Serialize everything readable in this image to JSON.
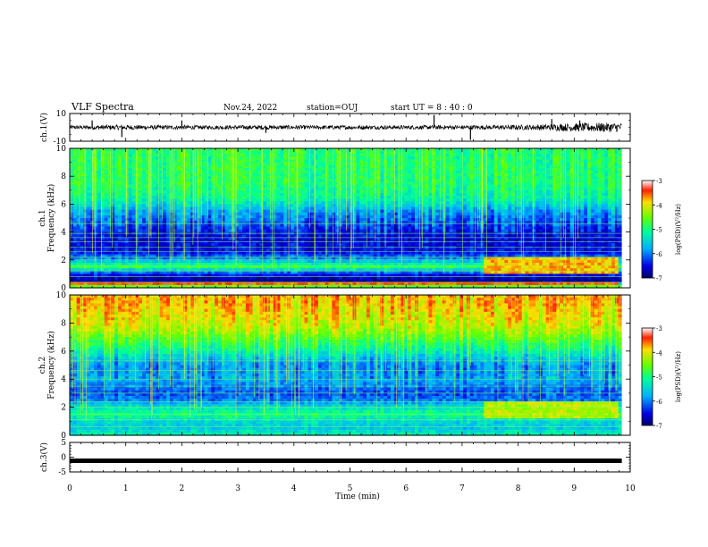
{
  "header": {
    "title": "VLF Spectra",
    "date": "Nov.24, 2022",
    "station": "station=OUJ",
    "start": "start  UT =  8 : 40 : 0"
  },
  "chart_data": [
    {
      "type": "line",
      "panel": "ch1-waveform",
      "ylabel": "ch.1(V)",
      "ylim": [
        -10,
        10
      ],
      "yticks": [
        "10",
        "-10"
      ],
      "xlim": [
        0,
        10
      ],
      "x": [
        0,
        0.5,
        1.0,
        1.5,
        2.0,
        2.5,
        3.0,
        3.5,
        4.0,
        4.5,
        5.0,
        5.5,
        6.0,
        6.5,
        7.0,
        7.5,
        8.0,
        8.5,
        9.0,
        9.5,
        9.85
      ],
      "envelope": [
        1.4,
        1.6,
        1.8,
        1.5,
        1.5,
        1.4,
        1.5,
        1.6,
        1.5,
        1.4,
        1.5,
        1.4,
        1.4,
        1.5,
        1.5,
        1.6,
        1.8,
        2.2,
        3.0,
        3.4,
        3.4
      ],
      "spikes": [
        {
          "x": 0.4,
          "y": 5
        },
        {
          "x": 0.93,
          "y": -7
        },
        {
          "x": 2.0,
          "y": 5
        },
        {
          "x": 3.5,
          "y": -4
        },
        {
          "x": 6.5,
          "y": 9
        },
        {
          "x": 7.15,
          "y": -9
        },
        {
          "x": 8.6,
          "y": 6
        },
        {
          "x": 9.1,
          "y": 5
        }
      ]
    },
    {
      "type": "heatmap",
      "panel": "ch1-spectrogram",
      "ylabel": "ch.1",
      "ylabel2": "Frequency (kHz)",
      "ylim": [
        0,
        10
      ],
      "yticks": [
        "0",
        "2",
        "4",
        "6",
        "8",
        "10"
      ],
      "xlim": [
        0,
        10
      ],
      "colorbar": {
        "label": "log(PSD)(V²/Hz)",
        "ticks": [
          "-3",
          "-4",
          "-5",
          "-6",
          "-7"
        ],
        "range": [
          -7,
          -3
        ]
      },
      "freq_khz": [
        0,
        0.5,
        1,
        1.5,
        2,
        2.5,
        3,
        3.5,
        4,
        4.5,
        5,
        5.5,
        6,
        6.5,
        7,
        7.5,
        8,
        8.5,
        9,
        9.5,
        10
      ],
      "profile_log_psd": [
        -4.0,
        -6.8,
        -6.4,
        -4.8,
        -5.8,
        -6.4,
        -6.5,
        -6.5,
        -6.4,
        -6.2,
        -6.0,
        -5.8,
        -5.4,
        -5.1,
        -5.0,
        -4.9,
        -4.9,
        -4.9,
        -4.9,
        -4.9,
        -4.9
      ],
      "hotspots": [
        {
          "t_start": 7.4,
          "t_end": 9.8,
          "f_start": 1.0,
          "f_end": 2.2,
          "log_psd": -3.8
        },
        {
          "t_start": 0.0,
          "t_end": 9.8,
          "f_start": 0.3,
          "f_end": 0.45,
          "log_psd": -3.5
        }
      ],
      "tones_khz": [
        0.4,
        0.8,
        1.2,
        1.6,
        2.0,
        2.2,
        2.6,
        2.9,
        3.3,
        3.6,
        3.9,
        4.6
      ]
    },
    {
      "type": "heatmap",
      "panel": "ch2-spectrogram",
      "ylabel": "ch.2",
      "ylabel2": "Frequency (kHz)",
      "ylim": [
        0,
        10
      ],
      "yticks": [
        "0",
        "2",
        "4",
        "6",
        "8",
        "10"
      ],
      "xlim": [
        0,
        10
      ],
      "colorbar": {
        "label": "log(PSD)(V²/Hz)",
        "ticks": [
          "-3",
          "-4",
          "-5",
          "-6",
          "-7"
        ],
        "range": [
          -7,
          -3
        ]
      },
      "freq_khz": [
        0,
        0.5,
        1,
        1.5,
        2,
        2.5,
        3,
        3.5,
        4,
        4.5,
        5,
        5.5,
        6,
        6.5,
        7,
        7.5,
        8,
        8.5,
        9,
        9.5,
        10
      ],
      "profile_log_psd": [
        -5.2,
        -5.6,
        -5.5,
        -5.0,
        -5.4,
        -6.0,
        -6.2,
        -6.0,
        -5.8,
        -5.9,
        -5.9,
        -5.6,
        -5.2,
        -4.9,
        -4.6,
        -4.3,
        -4.1,
        -4.0,
        -3.9,
        -3.8,
        -3.8
      ],
      "hotspots": [
        {
          "t_start": 7.4,
          "t_end": 9.8,
          "f_start": 1.2,
          "f_end": 2.4,
          "log_psd": -4.2
        }
      ],
      "tones_khz": [
        0.6,
        1.1,
        1.5,
        2.0,
        2.4,
        3.0,
        3.5,
        4.0,
        4.6,
        5.3
      ]
    },
    {
      "type": "line",
      "panel": "ch3-waveform",
      "ylabel": "ch.3(V)",
      "ylim": [
        -5,
        5
      ],
      "yticks": [
        "5",
        "0",
        "-5"
      ],
      "xlim": [
        0,
        10
      ],
      "x": [
        0,
        9.85
      ],
      "y": [
        -1.2,
        -1.2
      ]
    }
  ],
  "xaxis": {
    "label": "Time (min)",
    "ticks": [
      "0",
      "1",
      "2",
      "3",
      "4",
      "5",
      "6",
      "7",
      "8",
      "9",
      "10"
    ]
  }
}
